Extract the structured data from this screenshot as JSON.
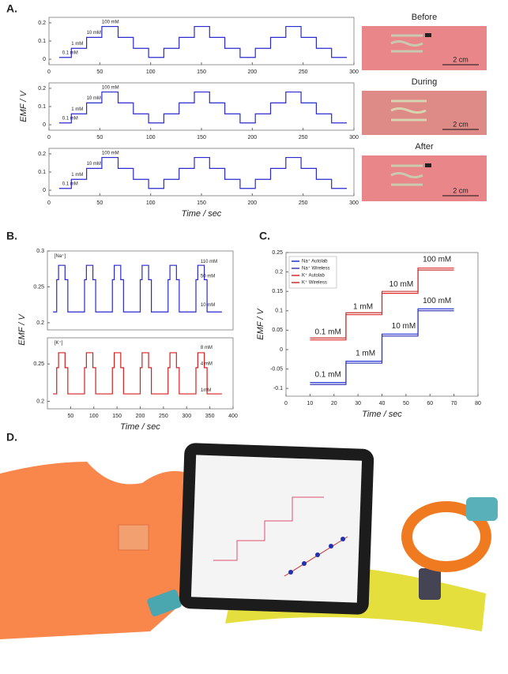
{
  "figure": {
    "panel_labels": [
      "A.",
      "B.",
      "C.",
      "D."
    ],
    "photo_labels": [
      "Before",
      "During",
      "After"
    ],
    "scale_bars": [
      "2 cm",
      "2 cm",
      "2 cm"
    ]
  },
  "chart_data": [
    {
      "type": "step",
      "x": [
        10,
        22,
        37,
        52,
        68,
        83,
        98,
        113,
        128,
        143,
        158,
        173,
        188,
        203,
        218,
        233,
        248,
        263,
        278,
        293
      ],
      "series": [
        {
          "color": "#2a2ad0",
          "values": [
            0.01,
            0.06,
            0.12,
            0.18,
            0.12,
            0.06,
            0.01,
            0.06,
            0.12,
            0.18,
            0.12,
            0.06,
            0.01,
            0.06,
            0.12,
            0.18,
            0.12,
            0.06,
            0.01,
            0.01
          ]
        }
      ],
      "xlim": [
        0,
        300
      ],
      "xticks": [
        0,
        50,
        100,
        150,
        200,
        250,
        300
      ],
      "ylim": [
        -0.03,
        0.23
      ],
      "yticks": [
        0,
        0.1,
        0.2
      ],
      "annotations": [
        "0.1 mM",
        "1 mM",
        "10 mM",
        "100 mM"
      ]
    },
    {
      "type": "step",
      "x": [
        10,
        22,
        37,
        52,
        68,
        83,
        98,
        113,
        128,
        143,
        158,
        173,
        188,
        203,
        218,
        233,
        248,
        263,
        278,
        293
      ],
      "series": [
        {
          "color": "#2a2ad0",
          "values": [
            0.01,
            0.06,
            0.12,
            0.18,
            0.12,
            0.06,
            0.01,
            0.06,
            0.12,
            0.18,
            0.12,
            0.06,
            0.01,
            0.06,
            0.12,
            0.18,
            0.12,
            0.06,
            0.01,
            0.01
          ]
        }
      ],
      "xlim": [
        0,
        300
      ],
      "xticks": [
        0,
        50,
        100,
        150,
        200,
        250,
        300
      ],
      "ylim": [
        -0.03,
        0.23
      ],
      "yticks": [
        0,
        0.1,
        0.2
      ],
      "annotations": [
        "0.1 mM",
        "1 mM",
        "10 mM",
        "100 mM"
      ],
      "y_label": "EMF / V"
    },
    {
      "type": "step",
      "x": [
        10,
        22,
        37,
        52,
        68,
        83,
        98,
        113,
        128,
        143,
        158,
        173,
        188,
        203,
        218,
        233,
        248,
        263,
        278,
        293
      ],
      "series": [
        {
          "color": "#2a2ad0",
          "values": [
            0.01,
            0.06,
            0.12,
            0.18,
            0.12,
            0.06,
            0.01,
            0.06,
            0.12,
            0.18,
            0.12,
            0.06,
            0.01,
            0.06,
            0.12,
            0.18,
            0.12,
            0.06,
            0.01,
            0.01
          ]
        }
      ],
      "xlim": [
        0,
        300
      ],
      "xticks": [
        0,
        50,
        100,
        150,
        200,
        250,
        300
      ],
      "ylim": [
        -0.03,
        0.23
      ],
      "yticks": [
        0,
        0.1,
        0.2
      ],
      "annotations": [
        "0.1 mM",
        "1 mM",
        "10 mM",
        "100 mM"
      ],
      "x_label": "Time / sec"
    },
    {
      "type": "step",
      "x": [
        12,
        20,
        24,
        38,
        44,
        80,
        84,
        98,
        104,
        140,
        144,
        158,
        164,
        200,
        204,
        218,
        224,
        260,
        264,
        278,
        284,
        320,
        324,
        338,
        344,
        376
      ],
      "series": [
        {
          "color": "#2a2ad0",
          "values": [
            0.215,
            0.26,
            0.28,
            0.26,
            0.215,
            0.26,
            0.28,
            0.26,
            0.215,
            0.26,
            0.28,
            0.26,
            0.215,
            0.26,
            0.28,
            0.26,
            0.215,
            0.26,
            0.28,
            0.26,
            0.215,
            0.26,
            0.28,
            0.26,
            0.215,
            0.215
          ]
        }
      ],
      "xlim": [
        0,
        400
      ],
      "ylim": [
        0.19,
        0.3
      ],
      "yticks": [
        0.2,
        0.25,
        0.3
      ],
      "annotations": [
        "[Na⁺]",
        "110 mM",
        "50 mM",
        "10 mM"
      ],
      "y_label": "EMF / V"
    },
    {
      "type": "step",
      "x": [
        12,
        20,
        24,
        38,
        44,
        80,
        84,
        98,
        104,
        140,
        144,
        158,
        164,
        200,
        204,
        218,
        224,
        260,
        264,
        278,
        284,
        320,
        324,
        338,
        344,
        376
      ],
      "series": [
        {
          "color": "#d42020",
          "values": [
            0.21,
            0.245,
            0.265,
            0.245,
            0.21,
            0.245,
            0.265,
            0.245,
            0.21,
            0.245,
            0.265,
            0.245,
            0.21,
            0.245,
            0.265,
            0.245,
            0.21,
            0.245,
            0.265,
            0.245,
            0.21,
            0.245,
            0.265,
            0.245,
            0.21,
            0.21
          ]
        }
      ],
      "xlim": [
        0,
        400
      ],
      "xticks": [
        50,
        100,
        150,
        200,
        250,
        300,
        350,
        400
      ],
      "ylim": [
        0.19,
        0.285
      ],
      "yticks": [
        0.2,
        0.25
      ],
      "annotations": [
        "[K⁺]",
        "8 mM",
        "4 mM",
        "1mM"
      ],
      "x_label": "Time / sec"
    },
    {
      "type": "step",
      "x": [
        10,
        25,
        40,
        55,
        70
      ],
      "series": [
        {
          "name": "Na⁺ Autolab",
          "color": "#1f2fd8",
          "values": [
            -0.085,
            -0.03,
            0.04,
            0.105,
            0.105
          ]
        },
        {
          "name": "Na⁺ Wireless",
          "color": "#3a3ab8",
          "values": [
            -0.09,
            -0.035,
            0.035,
            0.1,
            0.1
          ]
        },
        {
          "name": "K⁺ Autolab",
          "color": "#e02828",
          "values": [
            0.025,
            0.09,
            0.145,
            0.21,
            0.21
          ]
        },
        {
          "name": "K⁺ Wireless",
          "color": "#c83030",
          "values": [
            0.03,
            0.095,
            0.15,
            0.205,
            0.205
          ]
        }
      ],
      "xlim": [
        0,
        80
      ],
      "xticks": [
        0,
        10,
        20,
        30,
        40,
        50,
        60,
        70,
        80
      ],
      "ylim": [
        -0.12,
        0.25
      ],
      "yticks": [
        -0.1,
        -0.05,
        0,
        0.05,
        0.1,
        0.15,
        0.2,
        0.25
      ],
      "annotations": [
        "0.1 mM",
        "1 mM",
        "10 mM",
        "100 mM",
        "0.1 mM",
        "1 mM",
        "10 mM",
        "100 mM"
      ],
      "x_label": "Time / sec",
      "y_label": "EMF / V",
      "legend": "upper left"
    }
  ]
}
